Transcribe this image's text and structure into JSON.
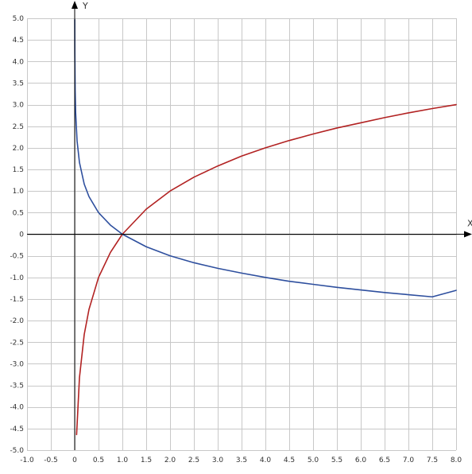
{
  "chart_data": {
    "type": "line",
    "title": "",
    "xlabel": "X",
    "ylabel": "Y",
    "xlim": [
      -1.0,
      8.0
    ],
    "ylim": [
      -5.0,
      5.0
    ],
    "grid": true,
    "x_ticks": [
      "-1.0",
      "-0.5",
      "0",
      "0.5",
      "1.0",
      "1.5",
      "2.0",
      "2.5",
      "3.0",
      "3.5",
      "4.0",
      "4.5",
      "5.0",
      "5.5",
      "6.0",
      "6.5",
      "7.0",
      "7.5",
      "8.0"
    ],
    "y_ticks": [
      "5.0",
      "4.5",
      "4.0",
      "3.5",
      "3.0",
      "2.5",
      "2.0",
      "1.5",
      "1.0",
      "0.5",
      "0",
      "-0.5",
      "-1.0",
      "-1.5",
      "-2.0",
      "-2.5",
      "-3.0",
      "-3.5",
      "-4.0",
      "-4.5",
      "-5.0"
    ],
    "series": [
      {
        "color": "#b22222",
        "points": [
          [
            0.04,
            -4.64
          ],
          [
            0.1,
            -3.32
          ],
          [
            0.2,
            -2.32
          ],
          [
            0.3,
            -1.74
          ],
          [
            0.5,
            -1.0
          ],
          [
            0.75,
            -0.42
          ],
          [
            1.0,
            0.0
          ],
          [
            1.5,
            0.58
          ],
          [
            2.0,
            1.0
          ],
          [
            2.5,
            1.32
          ],
          [
            3.0,
            1.58
          ],
          [
            3.5,
            1.81
          ],
          [
            4.0,
            2.0
          ],
          [
            4.5,
            2.17
          ],
          [
            5.0,
            2.32
          ],
          [
            5.5,
            2.46
          ],
          [
            6.0,
            2.58
          ],
          [
            6.5,
            2.7
          ],
          [
            7.0,
            2.81
          ],
          [
            7.5,
            2.91
          ],
          [
            8.0,
            3.0
          ]
        ]
      },
      {
        "color": "#2e4f9e",
        "points": [
          [
            0.001,
            4.97
          ],
          [
            0.003,
            4.2
          ],
          [
            0.01,
            3.32
          ],
          [
            0.02,
            2.82
          ],
          [
            0.05,
            2.16
          ],
          [
            0.1,
            1.66
          ],
          [
            0.2,
            1.16
          ],
          [
            0.3,
            0.87
          ],
          [
            0.5,
            0.5
          ],
          [
            0.75,
            0.21
          ],
          [
            1.0,
            0.0
          ],
          [
            1.5,
            -0.29
          ],
          [
            2.0,
            -0.5
          ],
          [
            2.5,
            -0.66
          ],
          [
            3.0,
            -0.79
          ],
          [
            3.5,
            -0.9
          ],
          [
            4.0,
            -1.0
          ],
          [
            4.5,
            -1.09
          ],
          [
            5.0,
            -1.16
          ],
          [
            5.5,
            -1.23
          ],
          [
            6.0,
            -1.29
          ],
          [
            6.5,
            -1.35
          ],
          [
            7.0,
            -1.4
          ],
          [
            7.5,
            -1.45
          ],
          [
            8.0,
            -1.3
          ]
        ]
      }
    ]
  }
}
